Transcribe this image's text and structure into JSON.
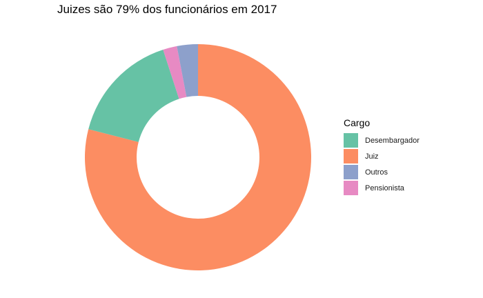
{
  "chart_data": {
    "type": "pie",
    "style": "donut",
    "title": "Juizes são 79% dos funcionários em 2017",
    "legend_title": "Cargo",
    "legend_position": "right",
    "categories": [
      "Desembargador",
      "Juiz",
      "Outros",
      "Pensionista"
    ],
    "values": [
      16,
      79,
      3,
      2
    ],
    "value_unit": "percent",
    "colors": [
      "#66c2a5",
      "#fc8d62",
      "#8da0cb",
      "#e78ac3"
    ],
    "slice_order_clockwise_from_top": [
      "Juiz",
      "Desembargador",
      "Pensionista",
      "Outros"
    ]
  }
}
